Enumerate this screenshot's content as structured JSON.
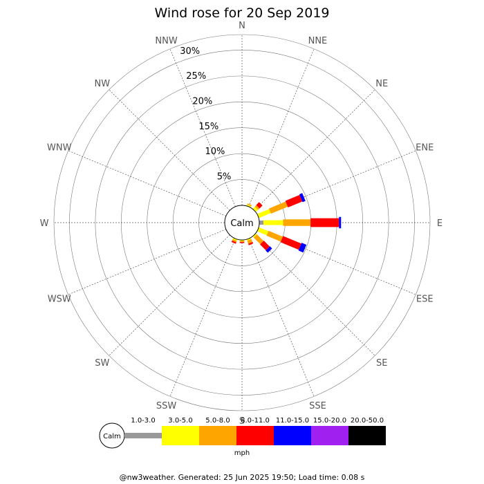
{
  "chart_data": {
    "type": "wind-rose",
    "title": "Wind rose for 20 Sep 2019",
    "directions": [
      "N",
      "NNE",
      "NE",
      "ENE",
      "E",
      "ESE",
      "SE",
      "SSE",
      "S",
      "SSW",
      "SW",
      "WSW",
      "W",
      "WNW",
      "NW",
      "NNW"
    ],
    "radial_labels": [
      "5%",
      "10%",
      "15%",
      "20%",
      "25%",
      "30%"
    ],
    "radial_ticks": [
      5,
      10,
      15,
      20,
      25,
      30
    ],
    "calm_label": "Calm",
    "units": "mph",
    "speed_bins": [
      {
        "label": "1.0-3.0",
        "color": "#999999"
      },
      {
        "label": "3.0-5.0",
        "color": "#ffff00"
      },
      {
        "label": "5.0-8.0",
        "color": "#ffa500"
      },
      {
        "label": "8.0-11.0",
        "color": "#ff0000"
      },
      {
        "label": "11.0-15.0",
        "color": "#0000ff"
      },
      {
        "label": "15.0-20.0",
        "color": "#a020f0"
      },
      {
        "label": "20.0-50.0",
        "color": "#000000"
      }
    ],
    "series": [
      {
        "direction": "N",
        "values": [
          0,
          0,
          0,
          0,
          0,
          0,
          0
        ]
      },
      {
        "direction": "NNE",
        "values": [
          0,
          0.3,
          0.2,
          0,
          0,
          0,
          0
        ]
      },
      {
        "direction": "NE",
        "values": [
          0,
          0.6,
          0.4,
          0.8,
          0,
          0,
          0
        ]
      },
      {
        "direction": "ENE",
        "values": [
          0,
          2.5,
          3.5,
          3.0,
          0.6,
          0,
          0
        ]
      },
      {
        "direction": "E",
        "values": [
          0.8,
          3.8,
          5.3,
          5.5,
          0.4,
          0,
          0
        ]
      },
      {
        "direction": "ESE",
        "values": [
          0,
          2.0,
          3.0,
          3.8,
          1.0,
          0,
          0
        ]
      },
      {
        "direction": "SE",
        "values": [
          0,
          0.3,
          1.8,
          1.6,
          0.6,
          0,
          0
        ]
      },
      {
        "direction": "SSE",
        "values": [
          0,
          0.3,
          0.6,
          0.3,
          0,
          0,
          0
        ]
      },
      {
        "direction": "S",
        "values": [
          0,
          0.2,
          0.2,
          0.2,
          0,
          0,
          0
        ]
      },
      {
        "direction": "SSW",
        "values": [
          0,
          0.3,
          0.3,
          0.3,
          0,
          0,
          0
        ]
      },
      {
        "direction": "SW",
        "values": [
          0,
          0,
          0,
          0,
          0,
          0,
          0
        ]
      },
      {
        "direction": "WSW",
        "values": [
          0,
          0,
          0,
          0,
          0,
          0,
          0
        ]
      },
      {
        "direction": "W",
        "values": [
          0,
          0,
          0,
          0,
          0,
          0,
          0
        ]
      },
      {
        "direction": "WNW",
        "values": [
          0,
          0,
          0,
          0,
          0,
          0,
          0
        ]
      },
      {
        "direction": "NW",
        "values": [
          0,
          0,
          0,
          0,
          0,
          0,
          0
        ]
      },
      {
        "direction": "NNW",
        "values": [
          0,
          0,
          0,
          0,
          0,
          0,
          0
        ]
      }
    ],
    "rmax": 33,
    "grid": true
  },
  "footer": "@nw3weather. Generated: 25 Jun 2025 19:50; Load time: 0.08 s"
}
